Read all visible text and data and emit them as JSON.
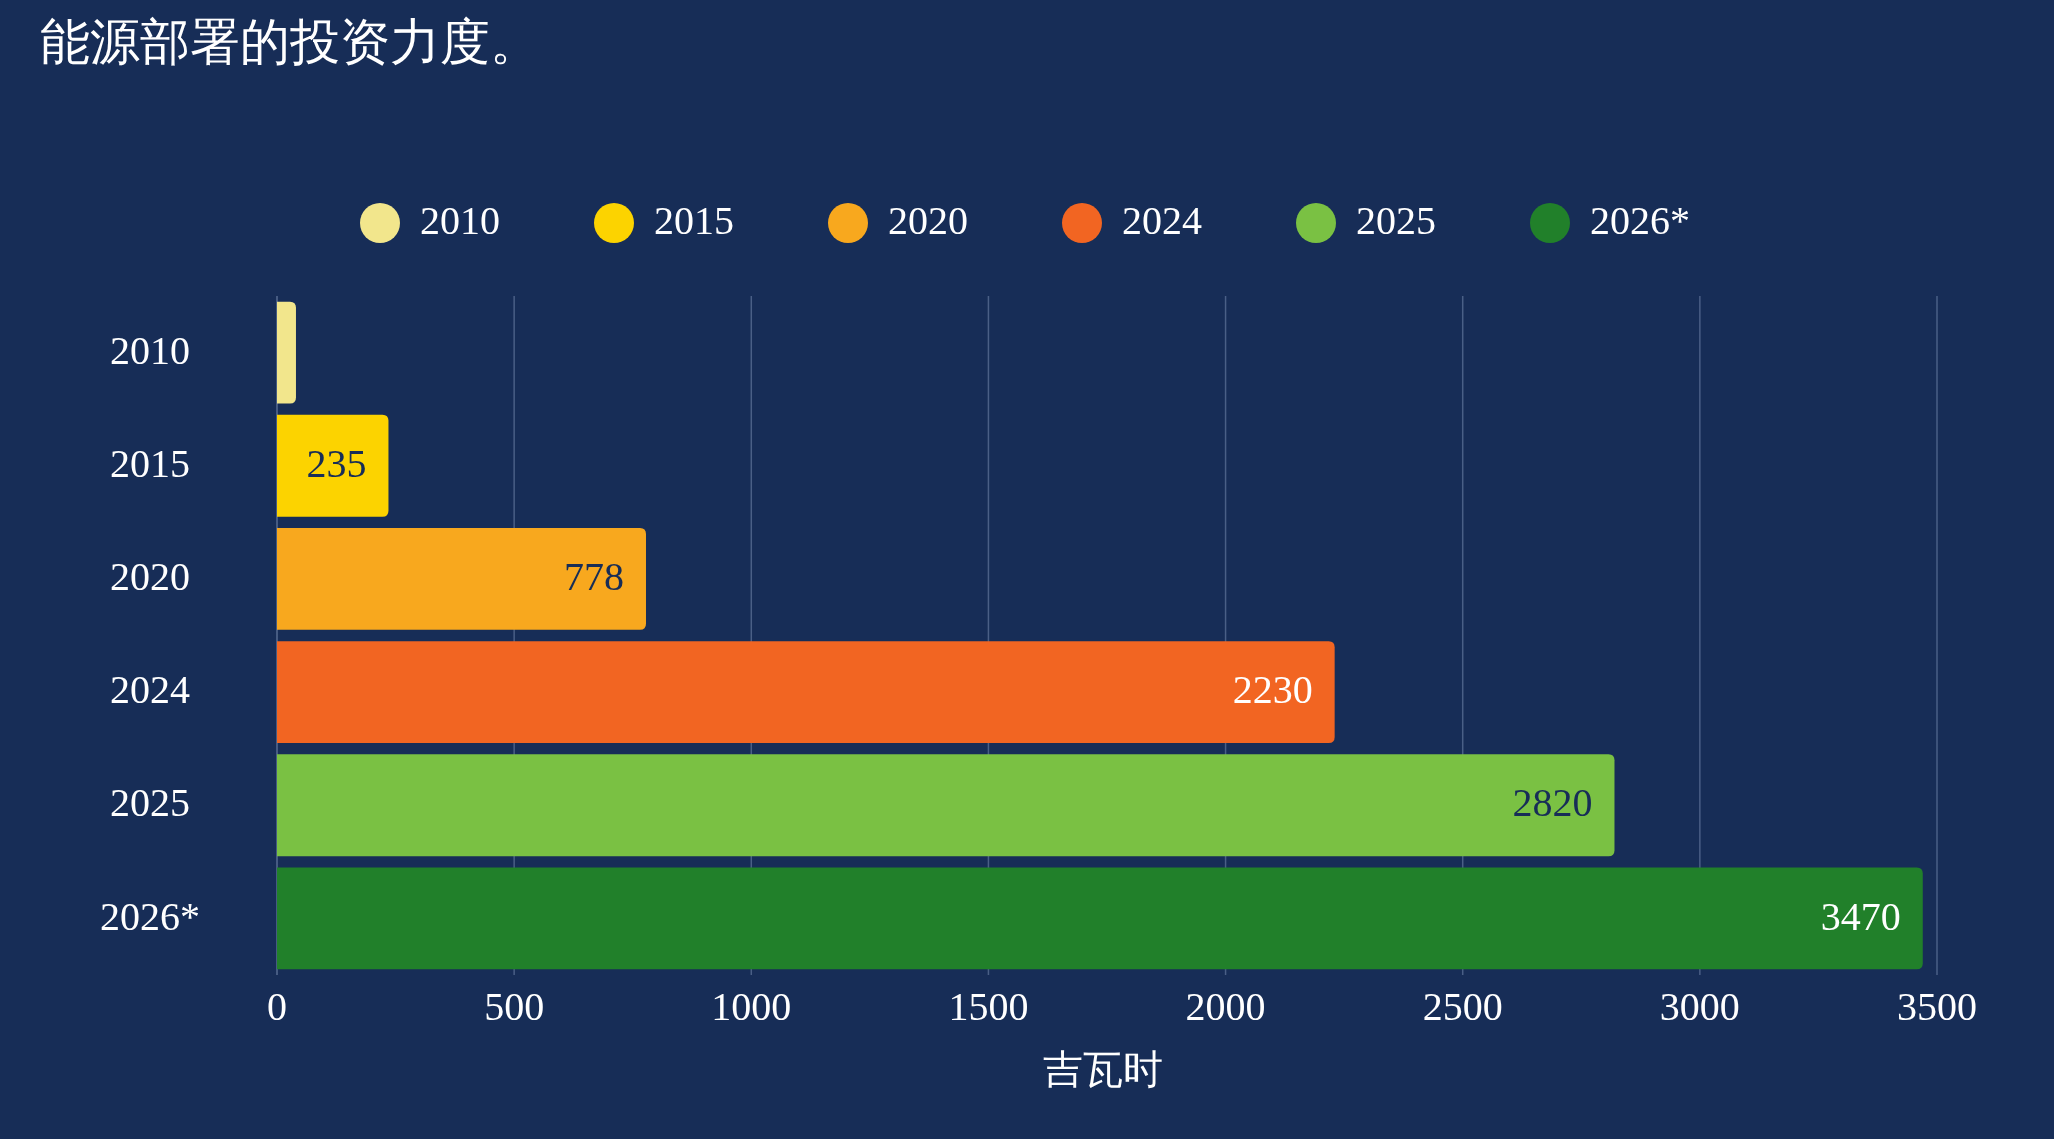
{
  "chart_data": {
    "type": "bar",
    "orientation": "horizontal",
    "title": "能源部署的投资力度。",
    "xlabel": "吉瓦时",
    "categories": [
      "2010",
      "2015",
      "2020",
      "2024",
      "2025",
      "2026*"
    ],
    "series": [
      {
        "name": "2010",
        "color": "#f2e68c",
        "values": [
          40,
          null,
          null,
          null,
          null,
          null
        ]
      },
      {
        "name": "2015",
        "color": "#fcd300",
        "values": [
          null,
          235,
          null,
          null,
          null,
          null
        ],
        "value_labels": [
          null,
          "235",
          null,
          null,
          null,
          null
        ]
      },
      {
        "name": "2020",
        "color": "#f8a81e",
        "values": [
          null,
          null,
          778,
          null,
          null,
          null
        ],
        "value_labels": [
          null,
          null,
          "778",
          null,
          null,
          null
        ]
      },
      {
        "name": "2024",
        "color": "#f26522",
        "values": [
          null,
          null,
          null,
          2230,
          null,
          null
        ],
        "value_labels": [
          null,
          null,
          null,
          "2230",
          null,
          null
        ]
      },
      {
        "name": "2025",
        "color": "#7ac143",
        "values": [
          null,
          null,
          null,
          null,
          2820,
          null
        ],
        "value_labels": [
          null,
          null,
          null,
          null,
          "2820",
          null
        ]
      },
      {
        "name": "2026*",
        "color": "#21802a",
        "values": [
          null,
          null,
          null,
          null,
          null,
          3470
        ],
        "value_labels": [
          null,
          null,
          null,
          null,
          null,
          "3470"
        ]
      }
    ],
    "xlim": [
      0,
      3500
    ],
    "xticks": [
      0,
      500,
      1000,
      1500,
      2000,
      2500,
      3000,
      3500
    ],
    "grid": "x",
    "legend": "top"
  }
}
